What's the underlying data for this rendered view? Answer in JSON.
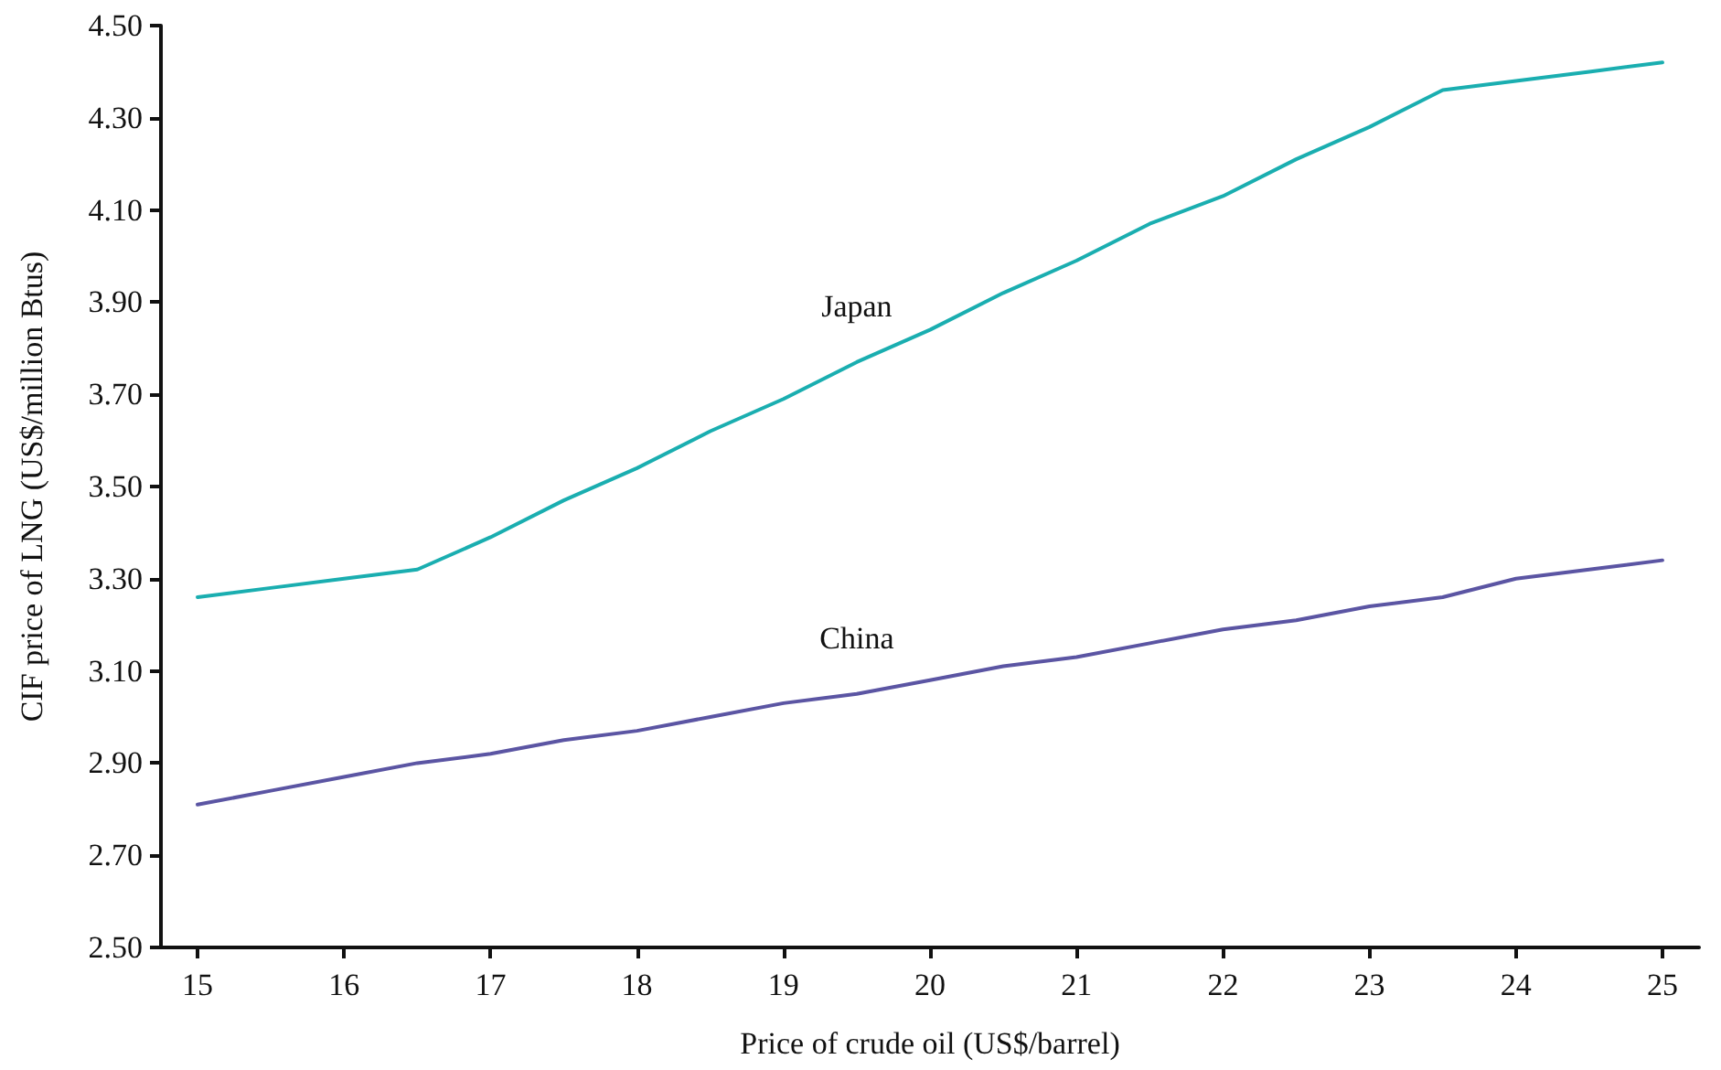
{
  "chart_data": {
    "type": "line",
    "xlabel": "Price of crude oil (US$/barrel)",
    "ylabel": "CIF price of LNG (US$/million Btus)",
    "x": [
      15,
      15.5,
      16,
      16.5,
      17,
      17.5,
      18,
      18.5,
      19,
      19.5,
      20,
      20.5,
      21,
      21.5,
      22,
      22.5,
      23,
      23.5,
      24,
      24.5,
      25
    ],
    "series": [
      {
        "name": "Japan",
        "color": "#1aaeb0",
        "values": [
          3.26,
          3.28,
          3.3,
          3.32,
          3.39,
          3.47,
          3.54,
          3.62,
          3.69,
          3.77,
          3.84,
          3.92,
          3.99,
          4.07,
          4.13,
          4.21,
          4.28,
          4.36,
          4.38,
          4.4,
          4.42
        ]
      },
      {
        "name": "China",
        "color": "#5b55a3",
        "values": [
          2.81,
          2.84,
          2.87,
          2.9,
          2.92,
          2.95,
          2.97,
          3.0,
          3.03,
          3.05,
          3.08,
          3.11,
          3.13,
          3.16,
          3.19,
          3.21,
          3.24,
          3.26,
          3.3,
          3.32,
          3.34
        ]
      }
    ],
    "xlim": [
      14.75,
      25.25
    ],
    "xticks": [
      15,
      16,
      17,
      18,
      19,
      20,
      21,
      22,
      23,
      24,
      25
    ],
    "ylim": [
      2.5,
      4.5
    ],
    "yticks": [
      {
        "value": 2.5,
        "label": "2.50"
      },
      {
        "value": 2.7,
        "label": "2.70"
      },
      {
        "value": 2.9,
        "label": "2.90"
      },
      {
        "value": 3.1,
        "label": "3.10"
      },
      {
        "value": 3.3,
        "label": "3.30"
      },
      {
        "value": 3.5,
        "label": "3.50"
      },
      {
        "value": 3.7,
        "label": "3.70"
      },
      {
        "value": 3.9,
        "label": "3.90"
      },
      {
        "value": 4.1,
        "label": "4.10"
      },
      {
        "value": 4.3,
        "label": "4.30"
      },
      {
        "value": 4.5,
        "label": "4.50"
      }
    ],
    "grid": false,
    "legend": false,
    "marker": "none",
    "line_style": "solid"
  }
}
